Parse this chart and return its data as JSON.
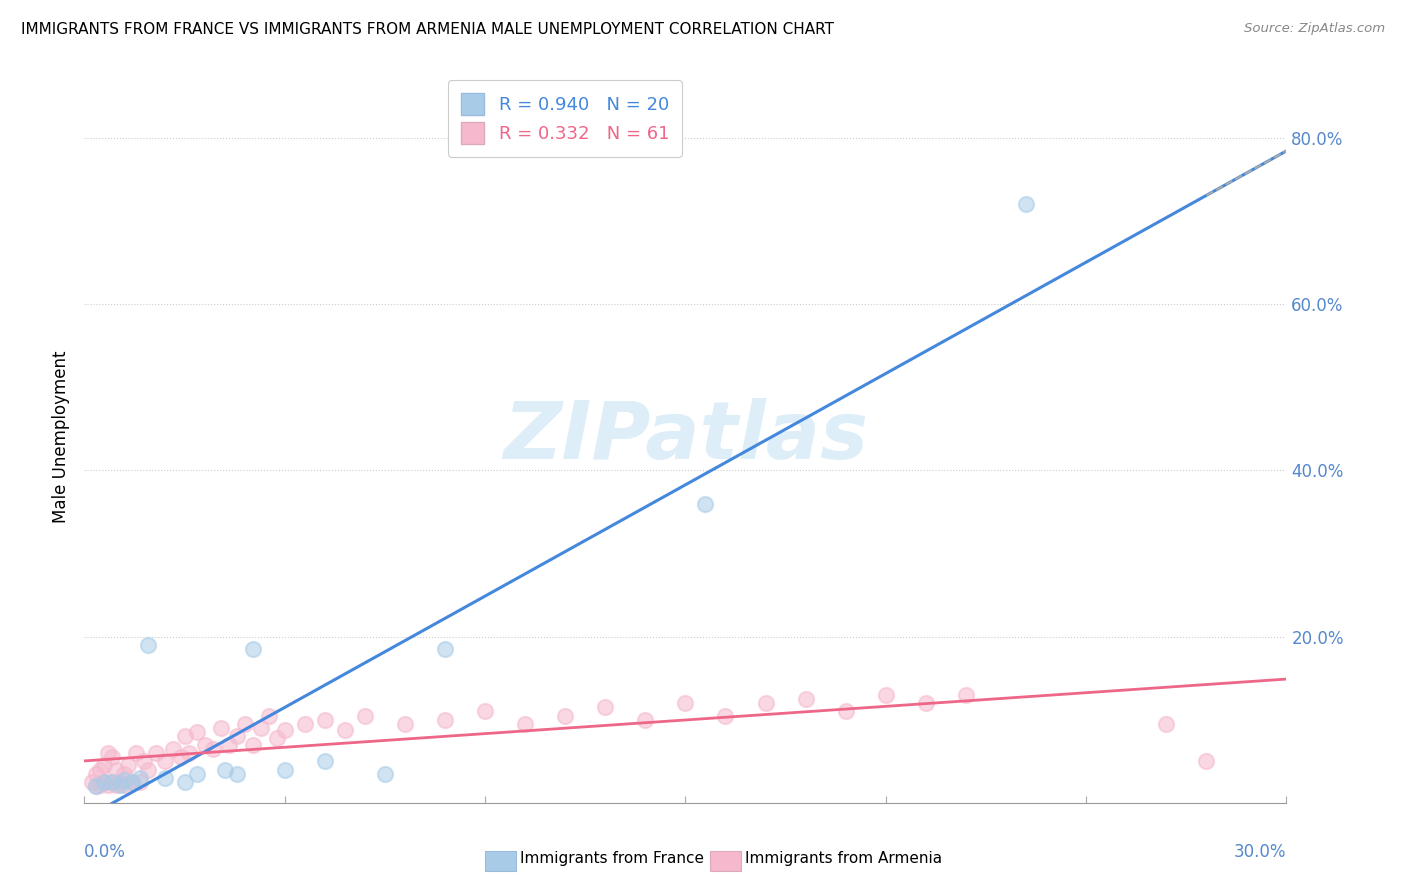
{
  "title": "IMMIGRANTS FROM FRANCE VS IMMIGRANTS FROM ARMENIA MALE UNEMPLOYMENT CORRELATION CHART",
  "source": "Source: ZipAtlas.com",
  "ylabel": "Male Unemployment",
  "ylim": [
    0,
    0.88
  ],
  "xlim": [
    0,
    0.3
  ],
  "ytick_vals": [
    0.0,
    0.2,
    0.4,
    0.6,
    0.8
  ],
  "ytick_labels": [
    "",
    "20.0%",
    "40.0%",
    "60.0%",
    "80.0%"
  ],
  "france_R": 0.94,
  "france_N": 20,
  "armenia_R": 0.332,
  "armenia_N": 61,
  "france_scatter_color": "#a8cce8",
  "armenia_scatter_color": "#f5b8cc",
  "france_line_color": "#4488dd",
  "armenia_line_color": "#ee6688",
  "watermark_text": "ZIPatlas",
  "watermark_color": "#ddeef8",
  "france_scatter_x": [
    0.003,
    0.005,
    0.007,
    0.009,
    0.01,
    0.012,
    0.014,
    0.016,
    0.02,
    0.025,
    0.028,
    0.035,
    0.038,
    0.042,
    0.05,
    0.06,
    0.075,
    0.09,
    0.155,
    0.235
  ],
  "france_scatter_y": [
    0.02,
    0.025,
    0.025,
    0.022,
    0.028,
    0.025,
    0.03,
    0.19,
    0.03,
    0.025,
    0.035,
    0.04,
    0.035,
    0.185,
    0.04,
    0.05,
    0.035,
    0.185,
    0.36,
    0.72
  ],
  "armenia_scatter_x": [
    0.002,
    0.003,
    0.003,
    0.004,
    0.004,
    0.005,
    0.005,
    0.006,
    0.006,
    0.007,
    0.007,
    0.008,
    0.008,
    0.009,
    0.01,
    0.01,
    0.011,
    0.012,
    0.013,
    0.014,
    0.015,
    0.016,
    0.018,
    0.02,
    0.022,
    0.024,
    0.025,
    0.026,
    0.028,
    0.03,
    0.032,
    0.034,
    0.036,
    0.038,
    0.04,
    0.042,
    0.044,
    0.046,
    0.048,
    0.05,
    0.055,
    0.06,
    0.065,
    0.07,
    0.08,
    0.09,
    0.1,
    0.11,
    0.12,
    0.13,
    0.14,
    0.15,
    0.16,
    0.17,
    0.18,
    0.19,
    0.2,
    0.21,
    0.22,
    0.27,
    0.28
  ],
  "armenia_scatter_y": [
    0.025,
    0.02,
    0.035,
    0.022,
    0.04,
    0.025,
    0.045,
    0.022,
    0.06,
    0.025,
    0.055,
    0.022,
    0.04,
    0.025,
    0.035,
    0.022,
    0.045,
    0.025,
    0.06,
    0.025,
    0.05,
    0.04,
    0.06,
    0.05,
    0.065,
    0.055,
    0.08,
    0.06,
    0.085,
    0.07,
    0.065,
    0.09,
    0.07,
    0.08,
    0.095,
    0.07,
    0.09,
    0.105,
    0.078,
    0.088,
    0.095,
    0.1,
    0.088,
    0.105,
    0.095,
    0.1,
    0.11,
    0.095,
    0.105,
    0.115,
    0.1,
    0.12,
    0.105,
    0.12,
    0.125,
    0.11,
    0.13,
    0.12,
    0.13,
    0.095,
    0.05
  ]
}
